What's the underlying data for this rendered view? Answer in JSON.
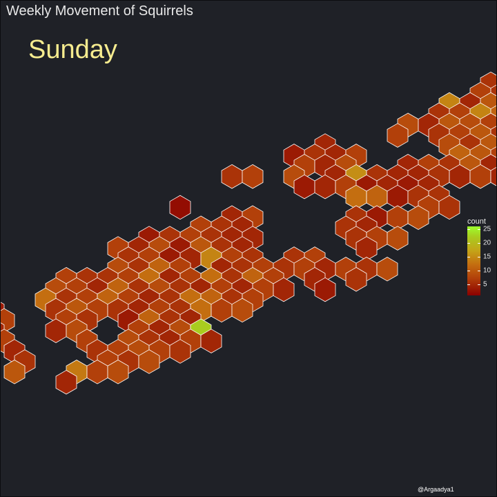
{
  "title": "Weekly Movement of Squirrels",
  "credit": "@Argaadya1",
  "chart_data": {
    "type": "heatmap",
    "subtype": "hexbin",
    "title": "Weekly Movement of Squirrels",
    "facet": "Sunday",
    "xlabel": "",
    "ylabel": "",
    "axes_visible": false,
    "grid": false,
    "legend": {
      "title": "count",
      "position": "right",
      "ticks": [
        5,
        10,
        15,
        20,
        25
      ],
      "range": [
        1,
        26
      ],
      "colors": [
        "#8b0000",
        "#c46e10",
        "#9dff2e"
      ]
    },
    "cells": [
      [
        13,
        0,
        6
      ],
      [
        14,
        0,
        4
      ],
      [
        12,
        1,
        5
      ],
      [
        13,
        1,
        6
      ],
      [
        13,
        2,
        5
      ],
      [
        14,
        2,
        7
      ],
      [
        12,
        3,
        2
      ],
      [
        13,
        3,
        6
      ],
      [
        14,
        3,
        5
      ],
      [
        11,
        4,
        5
      ],
      [
        12,
        4,
        4
      ],
      [
        13,
        4,
        7
      ],
      [
        14,
        4,
        5
      ],
      [
        10,
        5,
        6
      ],
      [
        11,
        5,
        5
      ],
      [
        12,
        5,
        6
      ],
      [
        13,
        5,
        4
      ],
      [
        9,
        6,
        12
      ],
      [
        10,
        6,
        4
      ],
      [
        11,
        6,
        8
      ],
      [
        12,
        6,
        5
      ],
      [
        13,
        6,
        7
      ],
      [
        8,
        7,
        5
      ],
      [
        9,
        7,
        6
      ],
      [
        10,
        7,
        12
      ],
      [
        11,
        7,
        9
      ],
      [
        12,
        7,
        6
      ],
      [
        13,
        7,
        8
      ],
      [
        7,
        8,
        7
      ],
      [
        8,
        8,
        4
      ],
      [
        9,
        8,
        8
      ],
      [
        10,
        8,
        7
      ],
      [
        11,
        8,
        6
      ],
      [
        12,
        8,
        6
      ],
      [
        13,
        8,
        10
      ],
      [
        6,
        9,
        6
      ],
      [
        8,
        9,
        5
      ],
      [
        9,
        9,
        6
      ],
      [
        10,
        9,
        8
      ],
      [
        11,
        9,
        5
      ],
      [
        12,
        9,
        5
      ],
      [
        13,
        9,
        7
      ],
      [
        3,
        10,
        4
      ],
      [
        9,
        10,
        7
      ],
      [
        10,
        10,
        5
      ],
      [
        11,
        10,
        8
      ],
      [
        12,
        10,
        4
      ],
      [
        13,
        10,
        8
      ],
      [
        1,
        11,
        3
      ],
      [
        2,
        11,
        5
      ],
      [
        3,
        11,
        4
      ],
      [
        4,
        11,
        6
      ],
      [
        9,
        11,
        9
      ],
      [
        10,
        11,
        8
      ],
      [
        11,
        11,
        6
      ],
      [
        12,
        11,
        5
      ],
      [
        13,
        11,
        4
      ],
      [
        14,
        11,
        7
      ],
      [
        2,
        12,
        6
      ],
      [
        3,
        12,
        4
      ],
      [
        4,
        12,
        7
      ],
      [
        7,
        12,
        4
      ],
      [
        8,
        12,
        6
      ],
      [
        9,
        12,
        5
      ],
      [
        10,
        12,
        8
      ],
      [
        11,
        12,
        4
      ],
      [
        12,
        12,
        12
      ],
      [
        13,
        12,
        8
      ],
      [
        14,
        12,
        9
      ],
      [
        -2,
        13,
        5
      ],
      [
        -1,
        13,
        6
      ],
      [
        1,
        13,
        7
      ],
      [
        3,
        13,
        4
      ],
      [
        4,
        13,
        13
      ],
      [
        5,
        13,
        5
      ],
      [
        6,
        13,
        4
      ],
      [
        7,
        13,
        4
      ],
      [
        8,
        13,
        5
      ],
      [
        9,
        13,
        4
      ],
      [
        10,
        13,
        6
      ],
      [
        11,
        13,
        4
      ],
      [
        2,
        14,
        3
      ],
      [
        3,
        14,
        4
      ],
      [
        4,
        14,
        6
      ],
      [
        5,
        14,
        3
      ],
      [
        6,
        14,
        4
      ],
      [
        7,
        14,
        3
      ],
      [
        8,
        14,
        4
      ],
      [
        4,
        15,
        10
      ],
      [
        5,
        15,
        9
      ],
      [
        6,
        15,
        3
      ],
      [
        7,
        15,
        5
      ],
      [
        8,
        15,
        5
      ],
      [
        -4,
        16,
        2
      ],
      [
        8,
        16,
        6
      ],
      [
        9,
        16,
        5
      ],
      [
        -2,
        17,
        4
      ],
      [
        -1,
        17,
        6
      ],
      [
        4,
        17,
        5
      ],
      [
        5,
        17,
        3
      ],
      [
        6,
        17,
        6
      ],
      [
        7,
        17,
        7
      ],
      [
        -3,
        18,
        6
      ],
      [
        -2,
        18,
        5
      ],
      [
        -1,
        18,
        4
      ],
      [
        4,
        18,
        5
      ],
      [
        5,
        18,
        4
      ],
      [
        -6,
        19,
        3
      ],
      [
        -5,
        19,
        5
      ],
      [
        -4,
        19,
        6
      ],
      [
        -3,
        19,
        5
      ],
      [
        -2,
        19,
        4
      ],
      [
        -1,
        19,
        4
      ],
      [
        4,
        19,
        5
      ],
      [
        5,
        19,
        6
      ],
      [
        6,
        19,
        7
      ],
      [
        -7,
        20,
        6
      ],
      [
        -6,
        20,
        4
      ],
      [
        -5,
        20,
        7
      ],
      [
        -4,
        20,
        3
      ],
      [
        -3,
        20,
        8
      ],
      [
        -2,
        20,
        5
      ],
      [
        -1,
        20,
        4
      ],
      [
        5,
        20,
        4
      ],
      [
        -7,
        21,
        5
      ],
      [
        -6,
        21,
        6
      ],
      [
        -5,
        21,
        3
      ],
      [
        -4,
        21,
        4
      ],
      [
        -3,
        21,
        12
      ],
      [
        -2,
        21,
        6
      ],
      [
        -1,
        21,
        5
      ],
      [
        1,
        21,
        5
      ],
      [
        2,
        21,
        6
      ],
      [
        -7,
        22,
        7
      ],
      [
        -6,
        22,
        5
      ],
      [
        -5,
        22,
        9
      ],
      [
        -4,
        22,
        6
      ],
      [
        -2,
        22,
        4
      ],
      [
        -1,
        22,
        5
      ],
      [
        0,
        22,
        6
      ],
      [
        1,
        22,
        5
      ],
      [
        2,
        22,
        6
      ],
      [
        3,
        22,
        4
      ],
      [
        4,
        22,
        6
      ],
      [
        5,
        22,
        5
      ],
      [
        6,
        22,
        7
      ],
      [
        -10,
        23,
        6
      ],
      [
        -9,
        23,
        5
      ],
      [
        -8,
        23,
        5
      ],
      [
        -7,
        23,
        6
      ],
      [
        -6,
        23,
        10
      ],
      [
        -5,
        23,
        4
      ],
      [
        -4,
        23,
        6
      ],
      [
        -3,
        23,
        10
      ],
      [
        -2,
        23,
        5
      ],
      [
        -1,
        23,
        9
      ],
      [
        0,
        23,
        6
      ],
      [
        2,
        23,
        4
      ],
      [
        4,
        23,
        5
      ],
      [
        -10,
        24,
        7
      ],
      [
        -9,
        24,
        6
      ],
      [
        -8,
        24,
        4
      ],
      [
        -7,
        24,
        9
      ],
      [
        -6,
        24,
        5
      ],
      [
        -5,
        24,
        7
      ],
      [
        -4,
        24,
        5
      ],
      [
        -3,
        24,
        4
      ],
      [
        -2,
        24,
        6
      ],
      [
        -1,
        24,
        4
      ],
      [
        0,
        24,
        6
      ],
      [
        1,
        24,
        4
      ],
      [
        3,
        24,
        3
      ],
      [
        -11,
        25,
        10
      ],
      [
        -10,
        25,
        5
      ],
      [
        -9,
        25,
        6
      ],
      [
        -8,
        25,
        9
      ],
      [
        -7,
        25,
        6
      ],
      [
        -6,
        25,
        4
      ],
      [
        -5,
        25,
        5
      ],
      [
        -4,
        25,
        10
      ],
      [
        -3,
        25,
        9
      ],
      [
        -2,
        25,
        5
      ],
      [
        -1,
        25,
        6
      ],
      [
        -14,
        26,
        4
      ],
      [
        -13,
        26,
        3
      ],
      [
        -10,
        26,
        5
      ],
      [
        -9,
        26,
        8
      ],
      [
        -8,
        26,
        6
      ],
      [
        -7,
        26,
        5
      ],
      [
        -6,
        26,
        4
      ],
      [
        -5,
        26,
        6
      ],
      [
        -4,
        26,
        5
      ],
      [
        -3,
        26,
        10
      ],
      [
        -2,
        26,
        6
      ],
      [
        -1,
        26,
        7
      ],
      [
        -15,
        27,
        5
      ],
      [
        -14,
        27,
        4
      ],
      [
        -13,
        27,
        6
      ],
      [
        -10,
        27,
        6
      ],
      [
        -9,
        27,
        5
      ],
      [
        -7,
        27,
        3
      ],
      [
        -6,
        27,
        9
      ],
      [
        -5,
        27,
        5
      ],
      [
        -4,
        27,
        4
      ],
      [
        -16,
        28,
        3
      ],
      [
        -15,
        28,
        7
      ],
      [
        -13,
        28,
        4
      ],
      [
        -10,
        28,
        4
      ],
      [
        -9,
        28,
        7
      ],
      [
        -6,
        28,
        6
      ],
      [
        -5,
        28,
        4
      ],
      [
        -4,
        28,
        7
      ],
      [
        -3,
        28,
        20
      ],
      [
        -16,
        29,
        5
      ],
      [
        -15,
        29,
        6
      ],
      [
        -14,
        29,
        5
      ],
      [
        -13,
        29,
        6
      ],
      [
        -9,
        29,
        6
      ],
      [
        -7,
        29,
        7
      ],
      [
        -6,
        29,
        5
      ],
      [
        -5,
        29,
        4
      ],
      [
        -4,
        29,
        6
      ],
      [
        -3,
        29,
        4
      ],
      [
        -17,
        30,
        6
      ],
      [
        -16,
        30,
        9
      ],
      [
        -14,
        30,
        5
      ],
      [
        -12,
        30,
        4
      ],
      [
        -8,
        30,
        5
      ],
      [
        -7,
        30,
        6
      ],
      [
        -6,
        30,
        7
      ],
      [
        -5,
        30,
        6
      ],
      [
        -4,
        30,
        5
      ],
      [
        -17,
        31,
        6
      ],
      [
        -16,
        31,
        7
      ],
      [
        -15,
        31,
        4
      ],
      [
        -12,
        31,
        5
      ],
      [
        -8,
        31,
        6
      ],
      [
        -7,
        31,
        5
      ],
      [
        -6,
        31,
        7
      ],
      [
        -17,
        32,
        4
      ],
      [
        -16,
        32,
        6
      ],
      [
        -15,
        32,
        5
      ],
      [
        -12,
        32,
        8
      ],
      [
        -9,
        32,
        11
      ],
      [
        -8,
        32,
        6
      ],
      [
        -7,
        32,
        7
      ],
      [
        -18,
        33,
        5
      ],
      [
        -17,
        33,
        10
      ],
      [
        -16,
        33,
        4
      ],
      [
        -10,
        33,
        4
      ],
      [
        -18,
        34,
        7
      ],
      [
        -17,
        34,
        6
      ],
      [
        -16,
        34,
        4
      ],
      [
        -18,
        35,
        5
      ],
      [
        -17,
        35,
        6
      ],
      [
        -18,
        36,
        5
      ],
      [
        -17,
        36,
        6
      ],
      [
        -16,
        36,
        5
      ],
      [
        -15,
        36,
        9
      ],
      [
        -19,
        37,
        4
      ],
      [
        -18,
        37,
        6
      ],
      [
        -17,
        37,
        4
      ],
      [
        -16,
        37,
        5
      ],
      [
        -18,
        38,
        4
      ],
      [
        -18,
        39,
        3
      ],
      [
        -17,
        39,
        7
      ]
    ]
  }
}
